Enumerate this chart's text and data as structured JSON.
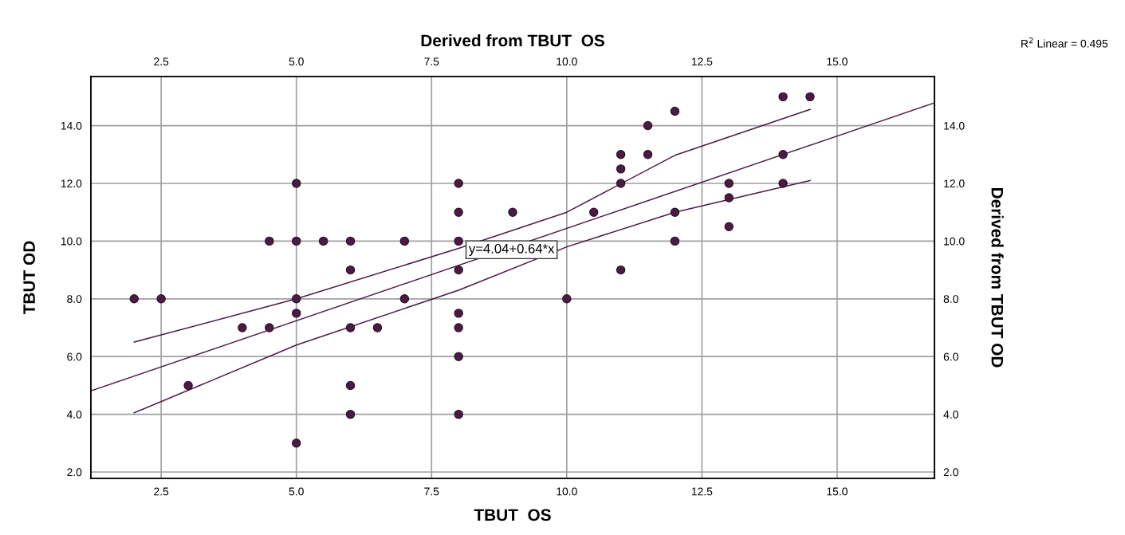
{
  "chart_data": {
    "type": "scatter",
    "xlabel": "TBUT  OS",
    "ylabel": "TBUT OD",
    "x2label": "Derived from TBUT  OS",
    "y2label": "Derived from TBUT OD",
    "xlim": [
      1.2,
      16.8
    ],
    "ylim": [
      1.78,
      15.7
    ],
    "x2lim": [
      1.2,
      16.8
    ],
    "y2lim": [
      1.78,
      15.7
    ],
    "xticks": [
      {
        "value": 2.5,
        "label": "2.5"
      },
      {
        "value": 5,
        "label": "5.0"
      },
      {
        "value": 7.5,
        "label": "7.5"
      },
      {
        "value": 10,
        "label": "10.0"
      },
      {
        "value": 12.5,
        "label": "12.5"
      },
      {
        "value": 15,
        "label": "15.0"
      }
    ],
    "x2ticks": [
      {
        "value": 2.5,
        "label": "2.5"
      },
      {
        "value": 5,
        "label": "5.0"
      },
      {
        "value": 7.5,
        "label": "7.5"
      },
      {
        "value": 10,
        "label": "10.0"
      },
      {
        "value": 12.5,
        "label": "12.5"
      },
      {
        "value": 15,
        "label": "15.0"
      }
    ],
    "yticks": [
      {
        "value": 2,
        "label": "2.0"
      },
      {
        "value": 4,
        "label": "4.0"
      },
      {
        "value": 6,
        "label": "6.0"
      },
      {
        "value": 8,
        "label": "8.0"
      },
      {
        "value": 10,
        "label": "10.0"
      },
      {
        "value": 12,
        "label": "12.0"
      },
      {
        "value": 14,
        "label": "14.0"
      }
    ],
    "y2ticks": [
      {
        "value": 2,
        "label": "2.0"
      },
      {
        "value": 4,
        "label": "4.0"
      },
      {
        "value": 6,
        "label": "6.0"
      },
      {
        "value": 8,
        "label": "8.0"
      },
      {
        "value": 10,
        "label": "10.0"
      },
      {
        "value": 12,
        "label": "12.0"
      },
      {
        "value": 14,
        "label": "14.0"
      }
    ],
    "grid": true,
    "series": [
      {
        "marker": "circle",
        "color": "#4a1c44",
        "x": [
          2,
          2.5,
          3,
          4,
          4.5,
          4.5,
          5,
          5,
          5,
          5,
          5,
          5.5,
          6,
          6,
          6,
          6,
          6,
          6.5,
          7,
          7,
          8,
          8,
          8,
          8,
          8,
          8,
          8,
          8,
          9,
          10,
          10.5,
          11,
          11,
          11,
          11,
          11.5,
          11.5,
          12,
          12,
          12,
          13,
          13,
          13,
          14,
          14,
          14,
          14.5
        ],
        "values": [
          8,
          8,
          5,
          7,
          7,
          10,
          12,
          10,
          8,
          7.5,
          3,
          10,
          10,
          9,
          7,
          5,
          4,
          7,
          10,
          8,
          12,
          11,
          10,
          9,
          7.5,
          7,
          6,
          4,
          11,
          8,
          11,
          13,
          12.5,
          12,
          9,
          14,
          13,
          14.5,
          11,
          10,
          12,
          11.5,
          10.5,
          15,
          13,
          12,
          15
        ]
      },
      {
        "type": "line",
        "color": "#4a1c44",
        "x": [
          1.2,
          16.8
        ],
        "values": [
          4.81,
          14.79
        ]
      },
      {
        "type": "line",
        "color": "#4a1c44",
        "x": [
          2,
          5,
          8,
          10,
          12,
          14.5
        ],
        "values": [
          6.5,
          8.0,
          9.75,
          11.0,
          12.97,
          14.56
        ]
      },
      {
        "type": "line",
        "color": "#4a1c44",
        "x": [
          2,
          5,
          8,
          10,
          12,
          14.5
        ],
        "values": [
          4.05,
          6.4,
          8.3,
          9.8,
          11.0,
          12.1
        ]
      }
    ],
    "annotations": [
      "R$^{2}$ Linear = 0.495",
      {
        "text": "y=4.04+0.64*x",
        "x": 8.98,
        "y": 9.7
      }
    ]
  }
}
